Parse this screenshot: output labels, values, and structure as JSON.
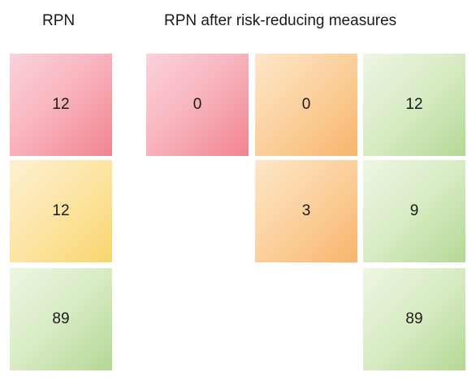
{
  "headings": {
    "left": "RPN",
    "right": "RPN after risk-reducing measures"
  },
  "left_column": [
    {
      "value": "12",
      "color": "red"
    },
    {
      "value": "12",
      "color": "yellow"
    },
    {
      "value": "89",
      "color": "green"
    }
  ],
  "right_grid": [
    [
      {
        "value": "0",
        "color": "red"
      },
      {
        "value": "0",
        "color": "amber"
      },
      {
        "value": "12",
        "color": "green"
      }
    ],
    [
      {
        "value": "3",
        "color": "amber"
      },
      {
        "value": "9",
        "color": "green"
      }
    ],
    [
      {
        "value": "89",
        "color": "green"
      }
    ]
  ],
  "colors": {
    "red": "#f0838e",
    "amber": "#f8b56c",
    "yellow": "#f9d56e",
    "green": "#b3d895"
  }
}
